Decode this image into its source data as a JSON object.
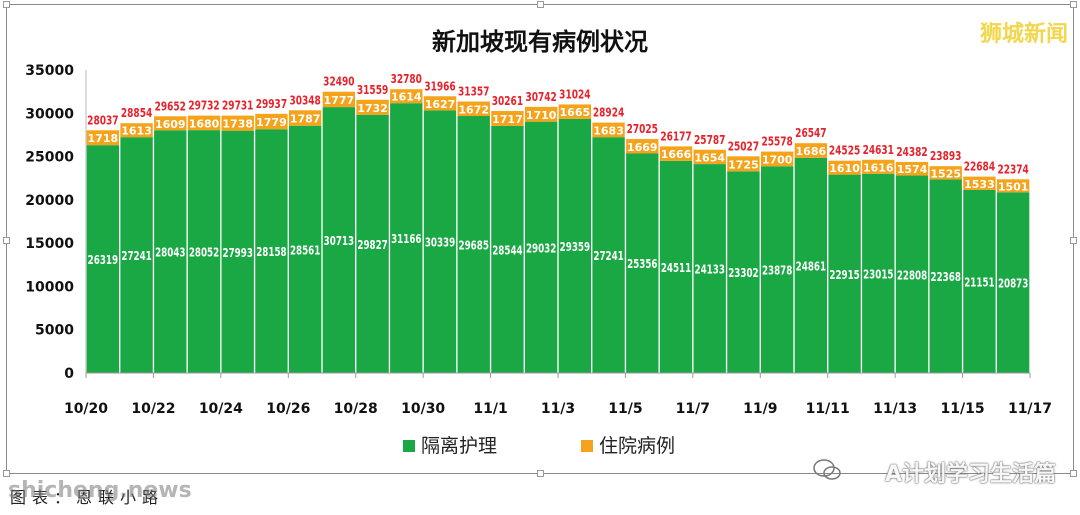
{
  "chart_data": {
    "type": "bar",
    "stacked": true,
    "title": "新加坡现有病例状况",
    "ylim": [
      0,
      35000
    ],
    "yticks": [
      "0",
      "5000",
      "10000",
      "15000",
      "20000",
      "25000",
      "30000",
      "35000"
    ],
    "categories": [
      "10/20",
      "10/21",
      "10/22",
      "10/23",
      "10/24",
      "10/25",
      "10/26",
      "10/27",
      "10/28",
      "10/29",
      "10/30",
      "10/31",
      "11/1",
      "11/2",
      "11/3",
      "11/4",
      "11/5",
      "11/6",
      "11/7",
      "11/8",
      "11/9",
      "11/10",
      "11/11",
      "11/12",
      "11/13",
      "11/14",
      "11/15",
      "11/16"
    ],
    "xtick_labels": [
      "10/20",
      "10/22",
      "10/24",
      "10/26",
      "10/28",
      "10/30",
      "11/1",
      "11/3",
      "11/5",
      "11/7",
      "11/9",
      "11/11",
      "11/13",
      "11/15",
      "11/17"
    ],
    "series": [
      {
        "name": "隔离护理",
        "color": "#1aa844",
        "values": [
          26319,
          27241,
          28043,
          28052,
          27993,
          28158,
          28561,
          30713,
          29827,
          31166,
          30339,
          29685,
          28544,
          29032,
          29359,
          27241,
          25356,
          24511,
          24133,
          23302,
          23878,
          24861,
          22915,
          23015,
          22808,
          22368,
          21151,
          20873
        ]
      },
      {
        "name": "住院病例",
        "color": "#f5a31b",
        "values": [
          1718,
          1613,
          1609,
          1680,
          1738,
          1779,
          1787,
          1777,
          1732,
          1614,
          1627,
          1672,
          1717,
          1710,
          1665,
          1683,
          1669,
          1666,
          1654,
          1725,
          1700,
          1686,
          1610,
          1616,
          1574,
          1525,
          1533,
          1501
        ]
      }
    ],
    "totals": [
      28037,
      28854,
      29652,
      29732,
      29731,
      29937,
      30348,
      32490,
      31559,
      32780,
      31966,
      31357,
      30261,
      30742,
      31024,
      28924,
      27025,
      26177,
      25787,
      25027,
      25578,
      26547,
      24525,
      24631,
      24382,
      23893,
      22684,
      22374
    ],
    "total_label_color": "#e8222b",
    "legend_placement": "bottom-center",
    "grid": false
  },
  "watermark": "狮城新闻",
  "caption": "图表：恩联小路",
  "caption_overlay": "shicheng.news",
  "wechat_watermark": "A计划学习生活篇"
}
